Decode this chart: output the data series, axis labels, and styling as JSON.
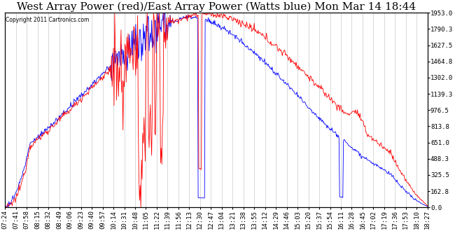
{
  "title": "West Array Power (red)/East Array Power (Watts blue) Mon Mar 14 18:44",
  "copyright": "Copyright 2011 Cartronics.com",
  "ylabel_right": [
    "1953.0",
    "1790.3",
    "1627.5",
    "1464.8",
    "1302.0",
    "1139.3",
    "976.5",
    "813.8",
    "651.0",
    "488.3",
    "325.5",
    "162.8",
    "0.0"
  ],
  "ymax": 1953.0,
  "ymin": 0.0,
  "x_labels": [
    "07:24",
    "07:41",
    "07:58",
    "08:15",
    "08:32",
    "08:49",
    "09:06",
    "09:23",
    "09:40",
    "09:57",
    "10:14",
    "10:31",
    "10:48",
    "11:05",
    "11:22",
    "11:39",
    "11:56",
    "12:13",
    "12:30",
    "12:47",
    "13:04",
    "13:21",
    "13:38",
    "13:55",
    "14:12",
    "14:29",
    "14:46",
    "15:03",
    "15:20",
    "15:37",
    "15:54",
    "16:11",
    "16:28",
    "16:45",
    "17:02",
    "17:19",
    "17:36",
    "17:53",
    "18:10",
    "18:27"
  ],
  "background_color": "#ffffff",
  "plot_bg_color": "#ffffff",
  "grid_color": "#bbbbbb",
  "red_color": "#ff0000",
  "blue_color": "#0000ff",
  "title_fontsize": 11,
  "tick_fontsize": 6.5
}
